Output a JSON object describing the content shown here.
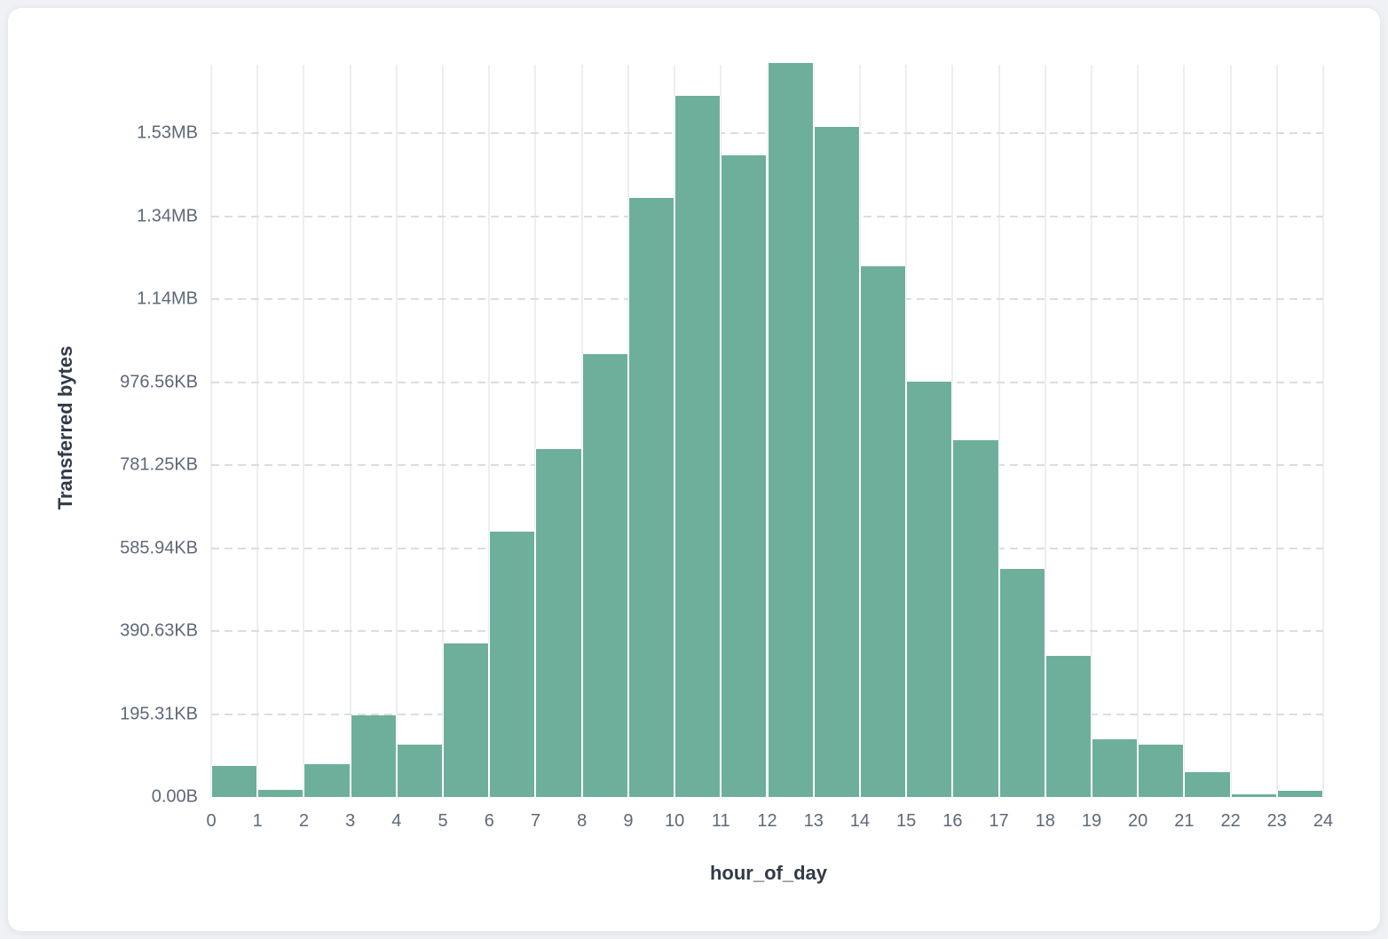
{
  "page": {
    "background": "#eff1f4"
  },
  "card": {
    "background": "#ffffff"
  },
  "chart_data": {
    "type": "bar",
    "subtype": "histogram",
    "title": "",
    "xlabel": "hour_of_day",
    "ylabel": "Transferred bytes",
    "bar_color": "#6eaf9b",
    "categories": [
      0,
      1,
      2,
      3,
      4,
      5,
      6,
      7,
      8,
      9,
      10,
      11,
      12,
      13,
      14,
      15,
      16,
      17,
      18,
      19,
      20,
      21,
      22,
      23
    ],
    "values": [
      74000,
      18000,
      80000,
      197000,
      127000,
      371000,
      640000,
      838000,
      1068000,
      1443000,
      1689000,
      1547000,
      1768000,
      1615000,
      1280000,
      1000000,
      859000,
      549000,
      341000,
      140000,
      127000,
      59000,
      6000,
      16000
    ],
    "values_unit": "bytes",
    "x_tick_labels": [
      "0",
      "1",
      "2",
      "3",
      "4",
      "5",
      "6",
      "7",
      "8",
      "9",
      "10",
      "11",
      "12",
      "13",
      "14",
      "15",
      "16",
      "17",
      "18",
      "19",
      "20",
      "21",
      "22",
      "23",
      "24"
    ],
    "y_ticks": [
      {
        "label": "0.00B",
        "bytes": 0
      },
      {
        "label": "195.31KB",
        "bytes": 200000
      },
      {
        "label": "390.63KB",
        "bytes": 400000
      },
      {
        "label": "585.94KB",
        "bytes": 600000
      },
      {
        "label": "781.25KB",
        "bytes": 800000
      },
      {
        "label": "976.56KB",
        "bytes": 1000000
      },
      {
        "label": "1.14MB",
        "bytes": 1200000
      },
      {
        "label": "1.34MB",
        "bytes": 1400000
      },
      {
        "label": "1.53MB",
        "bytes": 1600000
      }
    ],
    "ylim": [
      0,
      1765000
    ],
    "grid": {
      "horizontal": "dashed",
      "vertical": "solid",
      "legend": "none"
    }
  }
}
